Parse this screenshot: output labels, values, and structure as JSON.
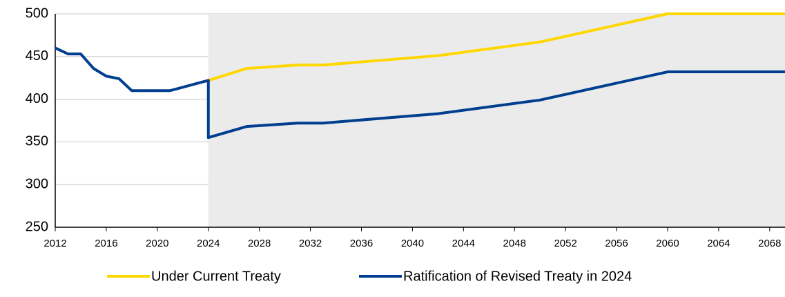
{
  "chart_data": {
    "type": "line",
    "series": [
      {
        "name": "Under Current Treaty",
        "color": "#ffd700",
        "x": [
          2024,
          2027,
          2031,
          2033,
          2042,
          2050,
          2060,
          2069.2
        ],
        "values": [
          422,
          436,
          440,
          440,
          451,
          467,
          500,
          500
        ]
      },
      {
        "name": "Ratification of Revised Treaty in 2024",
        "color": "#003f8f",
        "x": [
          2012,
          2013,
          2014,
          2015,
          2016,
          2017,
          2018,
          2019,
          2020,
          2021,
          2022,
          2023,
          2024,
          2024,
          2027,
          2031,
          2033,
          2042,
          2050,
          2060,
          2069.2
        ],
        "values": [
          460,
          453,
          453,
          436,
          427,
          424,
          410,
          410,
          410,
          410,
          414,
          418,
          422,
          355,
          368,
          372,
          372,
          383,
          399,
          432,
          432
        ]
      }
    ],
    "shaded_region": [
      2024,
      2069.2
    ],
    "xlim": [
      2012,
      2069.2
    ],
    "xticks": [
      2012,
      2016,
      2020,
      2024,
      2028,
      2032,
      2036,
      2040,
      2044,
      2048,
      2052,
      2056,
      2060,
      2064,
      2068
    ],
    "ylim": [
      250,
      500
    ],
    "yticks": [
      250,
      300,
      350,
      400,
      450,
      500
    ],
    "grid": true
  }
}
